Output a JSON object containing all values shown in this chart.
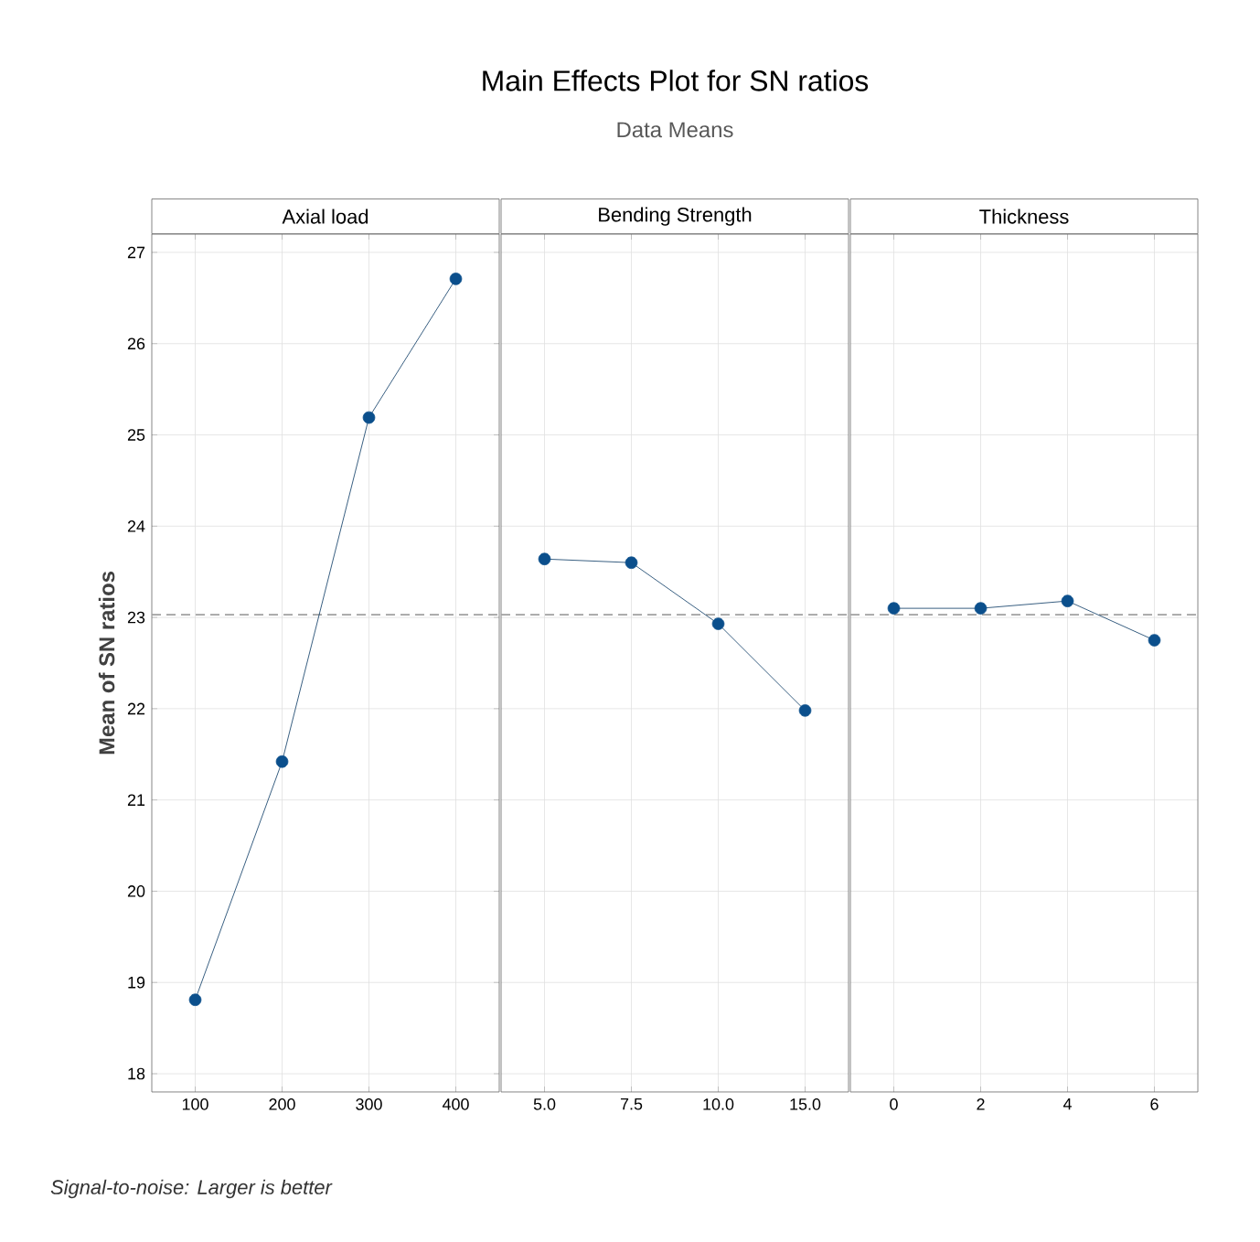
{
  "chart_data": [
    {
      "type": "line",
      "xlabel": "Axial load",
      "ylabel": "Mean of SN ratios",
      "categories": [
        "100",
        "200",
        "300",
        "400"
      ],
      "values": [
        18.81,
        21.42,
        25.19,
        26.71
      ],
      "color": "#0b4f8c",
      "marker": "circle",
      "grid": true,
      "ylim": [
        17.8,
        27.2
      ],
      "yticks": [
        18,
        19,
        20,
        21,
        22,
        23,
        24,
        25,
        26,
        27
      ],
      "ref_lines": [
        {
          "axis": "y",
          "value": 23.03,
          "color": "#a0a0a0",
          "line_style": "dashed"
        }
      ],
      "annotations": [
        "Signal-to-noise: Larger is better"
      ]
    },
    {
      "type": "line",
      "title": "Main Effects Plot for SN ratios",
      "subtitle": "Data Means",
      "xlabel": "Bending Strength",
      "categories": [
        "5.0",
        "7.5",
        "10.0",
        "15.0"
      ],
      "values": [
        23.64,
        23.6,
        22.93,
        21.98
      ],
      "color": "#0b4f8c",
      "marker": "circle",
      "grid": true,
      "ylim": [
        17.8,
        27.2
      ],
      "yticks": [
        18,
        19,
        20,
        21,
        22,
        23,
        24,
        25,
        26,
        27
      ],
      "tick_labels": "x",
      "ref_lines": [
        {
          "axis": "y",
          "value": 23.03,
          "color": "#a0a0a0",
          "line_style": "dashed"
        }
      ]
    },
    {
      "type": "line",
      "xlabel": "Thickness",
      "categories": [
        "0",
        "2",
        "4",
        "6"
      ],
      "values": [
        23.1,
        23.1,
        23.18,
        22.75
      ],
      "color": "#0b4f8c",
      "marker": "circle",
      "grid": true,
      "ylim": [
        17.8,
        27.2
      ],
      "yticks": [
        18,
        19,
        20,
        21,
        22,
        23,
        24,
        25,
        26,
        27
      ],
      "tick_labels": "x",
      "ref_lines": [
        {
          "axis": "y",
          "value": 23.03,
          "color": "#a0a0a0",
          "line_style": "dashed"
        }
      ]
    }
  ]
}
